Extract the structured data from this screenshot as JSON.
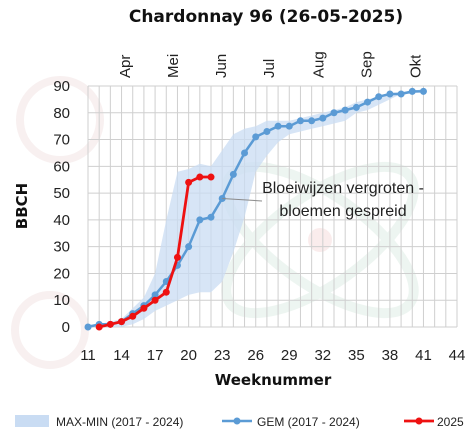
{
  "colors": {
    "band": "#c9dcf3",
    "gem": "#5b9bd5",
    "y2025": "#ee1111",
    "grid": "#cfcfcf",
    "annotation_line": "#8a8a8a"
  },
  "chart_data": {
    "type": "line",
    "title": "Chardonnay 96 (26-05-2025)",
    "xlabel": "Weeknummer",
    "ylabel": "BBCH",
    "xlim": [
      11,
      44
    ],
    "ylim": [
      0,
      90
    ],
    "x_ticks": [
      11,
      14,
      17,
      20,
      23,
      26,
      29,
      32,
      35,
      38,
      41,
      44
    ],
    "y_ticks": [
      0,
      10,
      20,
      30,
      40,
      50,
      60,
      70,
      80,
      90
    ],
    "grid": true,
    "month_labels": [
      {
        "label": "Apr",
        "week": 14.3
      },
      {
        "label": "Mei",
        "week": 18.6
      },
      {
        "label": "Jun",
        "week": 22.9
      },
      {
        "label": "Jul",
        "week": 27.2
      },
      {
        "label": "Aug",
        "week": 31.6
      },
      {
        "label": "Sep",
        "week": 35.9
      },
      {
        "label": "Okt",
        "week": 40.3
      }
    ],
    "annotation": {
      "lines": [
        "Bloeiwijzen vergroten -",
        "bloemen gespreid"
      ],
      "points_to": {
        "week": 23,
        "value": 48
      }
    },
    "band": {
      "name": "MAX-MIN (2017 - 2024)",
      "x": [
        11,
        12,
        13,
        14,
        15,
        16,
        17,
        18,
        19,
        20,
        21,
        22,
        23,
        24,
        25,
        26,
        27,
        28,
        29,
        30,
        31,
        32,
        33,
        34,
        35,
        36,
        37,
        38,
        39,
        40,
        41
      ],
      "max": [
        1,
        1,
        2,
        3,
        7,
        11,
        20,
        40,
        58,
        59,
        61,
        60,
        66,
        72,
        74,
        75,
        77,
        77,
        77,
        78,
        79,
        80,
        81,
        82,
        84,
        85,
        86,
        87,
        88,
        88,
        89
      ],
      "min": [
        0,
        0,
        0,
        0,
        1,
        3,
        6,
        8,
        10,
        12,
        13,
        13,
        17,
        28,
        41,
        58,
        64,
        69,
        72,
        73,
        74,
        75,
        76,
        77,
        80,
        81,
        83,
        85,
        87,
        87,
        88
      ]
    },
    "series": [
      {
        "name": "GEM (2017 - 2024)",
        "x": [
          11,
          12,
          13,
          14,
          15,
          16,
          17,
          18,
          19,
          20,
          21,
          22,
          23,
          24,
          25,
          26,
          27,
          28,
          29,
          30,
          31,
          32,
          33,
          34,
          35,
          36,
          37,
          38,
          39,
          40,
          41
        ],
        "values": [
          0,
          1,
          1,
          2,
          5,
          8,
          12,
          17,
          23,
          30,
          40,
          41,
          48,
          57,
          65,
          71,
          73,
          75,
          75,
          77,
          77,
          78,
          80,
          81,
          82,
          84,
          86,
          87,
          87,
          88,
          88
        ]
      },
      {
        "name": "2025",
        "x": [
          12,
          13,
          14,
          15,
          16,
          17,
          18,
          19,
          20,
          21,
          22
        ],
        "values": [
          0,
          1,
          2,
          4,
          7,
          10,
          13,
          26,
          54,
          56,
          56
        ]
      }
    ]
  }
}
